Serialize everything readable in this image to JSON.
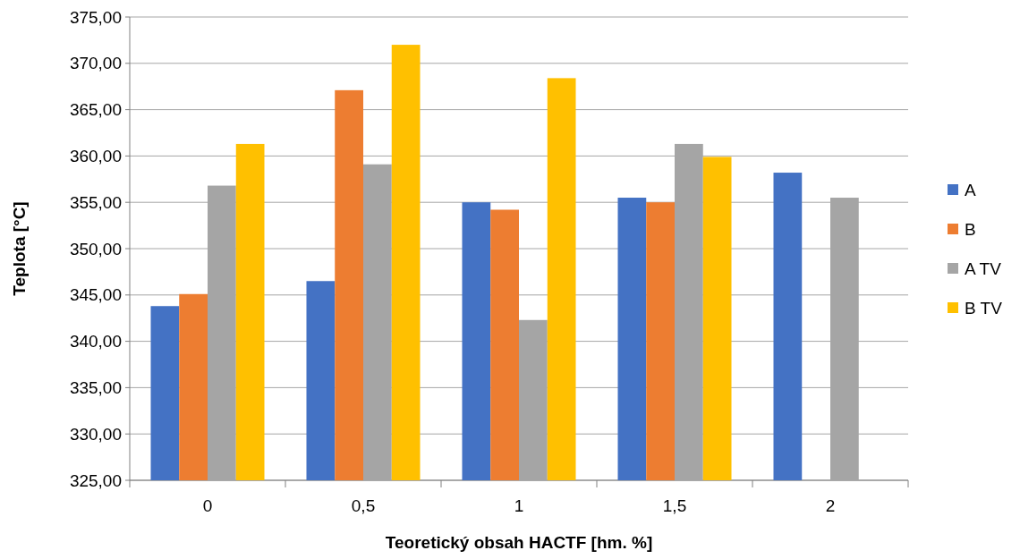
{
  "chart_data": {
    "type": "bar",
    "xlabel": "Teoretický obsah HACTF [hm. %]",
    "ylabel": "Teplota [°C]",
    "categories": [
      "0",
      "0,5",
      "1",
      "1,5",
      "2"
    ],
    "series": [
      {
        "name": "A",
        "color": "#4472c4",
        "values": [
          343.8,
          346.5,
          355.0,
          355.5,
          358.2
        ]
      },
      {
        "name": "B",
        "color": "#ed7d31",
        "values": [
          345.1,
          367.1,
          354.2,
          355.0,
          null
        ]
      },
      {
        "name": "A TV",
        "color": "#a5a5a5",
        "values": [
          356.8,
          359.1,
          342.3,
          361.3,
          355.5
        ]
      },
      {
        "name": "B TV",
        "color": "#ffc000",
        "values": [
          361.3,
          372.0,
          368.4,
          359.9,
          null
        ]
      }
    ],
    "ylim": [
      325,
      375
    ],
    "yticks": [
      {
        "value": 325,
        "label": "325,00"
      },
      {
        "value": 330,
        "label": "330,00"
      },
      {
        "value": 335,
        "label": "335,00"
      },
      {
        "value": 340,
        "label": "340,00"
      },
      {
        "value": 345,
        "label": "345,00"
      },
      {
        "value": 350,
        "label": "350,00"
      },
      {
        "value": 355,
        "label": "355,00"
      },
      {
        "value": 360,
        "label": "360,00"
      },
      {
        "value": 365,
        "label": "365,00"
      },
      {
        "value": 370,
        "label": "370,00"
      },
      {
        "value": 375,
        "label": "375,00"
      }
    ],
    "grid": "y",
    "legend": "right"
  }
}
